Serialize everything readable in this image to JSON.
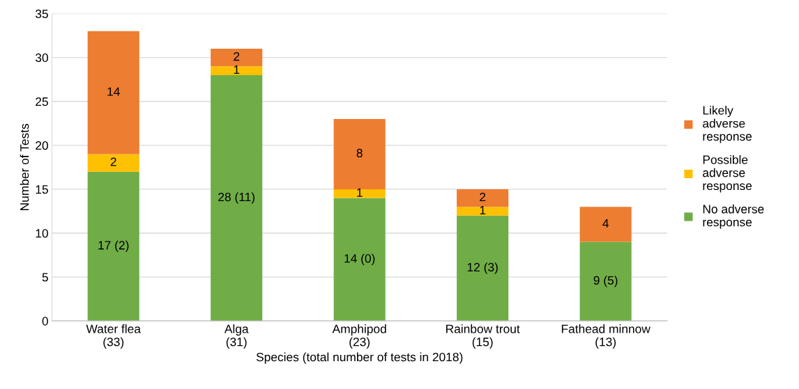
{
  "chart_data": {
    "type": "bar",
    "stacked": true,
    "xlabel": "Species (total number of tests in 2018)",
    "ylabel": "Number of Tests",
    "categories": [
      "Water flea\n(33)",
      "Alga\n(31)",
      "Amphipod\n(23)",
      "Rainbow trout\n(15)",
      "Fathead minnow\n(13)"
    ],
    "series": [
      {
        "name": "No adverse\nresponse",
        "color": "#70ad47",
        "values": [
          17,
          28,
          14,
          12,
          9
        ],
        "value_labels": [
          "17 (2)",
          "28 (11)",
          "14 (0)",
          "12 (3)",
          "9 (5)"
        ]
      },
      {
        "name": "Possible\nadverse\nresponse",
        "color": "#ffc000",
        "values": [
          2,
          1,
          1,
          1,
          null
        ],
        "value_labels": [
          "2",
          "1",
          "1",
          "1",
          null
        ]
      },
      {
        "name": "Likely\nadverse\nresponse",
        "color": "#ed7d31",
        "values": [
          14,
          2,
          8,
          2,
          4
        ],
        "value_labels": [
          "14",
          "2",
          "8",
          "2",
          "4"
        ]
      }
    ],
    "ylim": [
      0,
      35
    ],
    "yticks": [
      0,
      5,
      10,
      15,
      20,
      25,
      30,
      35
    ],
    "grid": "y",
    "legend": "right"
  }
}
